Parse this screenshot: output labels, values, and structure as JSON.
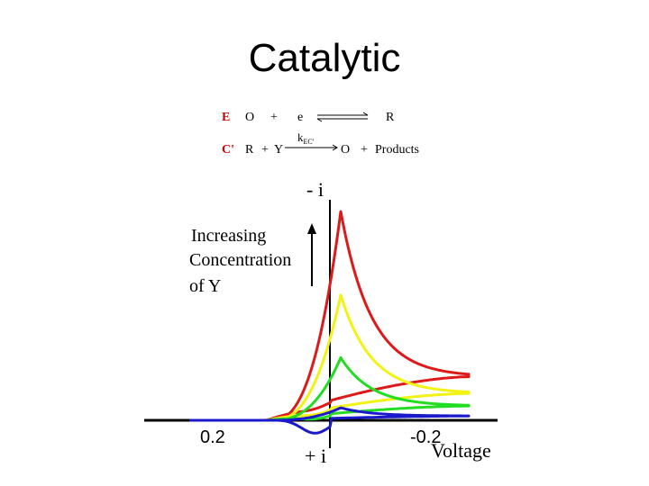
{
  "slide": {
    "title": "Catalytic"
  },
  "scheme": {
    "line1": {
      "tag": "E",
      "left": "O",
      "plus": "+",
      "e": "e",
      "right": "R"
    },
    "line2": {
      "tag": "C'",
      "left": "R",
      "plus1": "+",
      "y": "Y",
      "k": "k",
      "ksub": "EC'",
      "right": "O",
      "plus2": "+",
      "products": "Products"
    }
  },
  "annotation": {
    "lines": [
      "Increasing",
      "Concentration",
      "of Y"
    ]
  },
  "colors": {
    "red": "#dd1a1a",
    "yellow": "#f2f215",
    "green": "#22dd22",
    "blue": "#1a1acc",
    "black": "#000000"
  },
  "chart_data": {
    "type": "line",
    "xlabel": "Voltage",
    "ylabel_top": "- i",
    "ylabel_bottom": "+ i",
    "x_ticks": [
      "0.2",
      "-0.2"
    ],
    "series": [
      {
        "color": "red",
        "peak_current": 10.0
      },
      {
        "color": "yellow",
        "peak_current": 6.0
      },
      {
        "color": "green",
        "peak_current": 3.0
      },
      {
        "color": "blue",
        "peak_current": 0.6
      }
    ]
  }
}
